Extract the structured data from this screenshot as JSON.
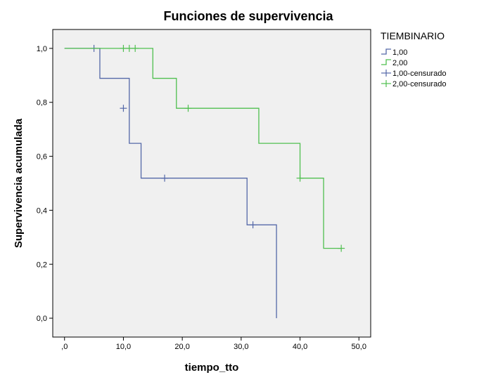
{
  "chart_data": {
    "type": "line",
    "subtype": "kaplan-meier-step",
    "title": "Funciones de supervivencia",
    "xlabel": "tiempo_tto",
    "ylabel": "Supervivencia acumulada",
    "xlim": [
      -2,
      52
    ],
    "ylim": [
      -0.07,
      1.07
    ],
    "x_ticks": [
      0,
      10,
      20,
      30,
      40,
      50
    ],
    "x_tick_labels": [
      ",0",
      "10,0",
      "20,0",
      "30,0",
      "40,0",
      "50,0"
    ],
    "y_ticks": [
      0.0,
      0.2,
      0.4,
      0.6,
      0.8,
      1.0
    ],
    "y_tick_labels": [
      "0,0",
      "0,2",
      "0,4",
      "0,6",
      "0,8",
      "1,0"
    ],
    "grid": false,
    "legend": {
      "title": "TIEMBINARIO",
      "placement": "top-right-outside",
      "entries": [
        "1,00",
        "2,00",
        "1,00-censurado",
        "2,00-censurado"
      ]
    },
    "series": [
      {
        "name": "1,00",
        "color": "#5468a8",
        "steps": [
          [
            0,
            1.0
          ],
          [
            6,
            0.889
          ],
          [
            10,
            0.889
          ],
          [
            11,
            0.648
          ],
          [
            13,
            0.519
          ],
          [
            31,
            0.346
          ],
          [
            36,
            0.0
          ]
        ],
        "end_x": 36,
        "censored": [
          [
            5,
            1.0
          ],
          [
            10,
            0.778
          ],
          [
            17,
            0.519
          ],
          [
            32,
            0.346
          ]
        ]
      },
      {
        "name": "2,00",
        "color": "#4fbf4f",
        "steps": [
          [
            0,
            1.0
          ],
          [
            15,
            0.889
          ],
          [
            19,
            0.778
          ],
          [
            33,
            0.648
          ],
          [
            40,
            0.519
          ],
          [
            44,
            0.259
          ]
        ],
        "end_x": 47,
        "censored": [
          [
            10,
            1.0
          ],
          [
            11,
            1.0
          ],
          [
            12,
            1.0
          ],
          [
            21,
            0.778
          ],
          [
            40,
            0.519
          ],
          [
            47,
            0.259
          ]
        ]
      }
    ]
  },
  "colors": {
    "plot_background": "#f0f0f0",
    "axis": "#000000"
  }
}
